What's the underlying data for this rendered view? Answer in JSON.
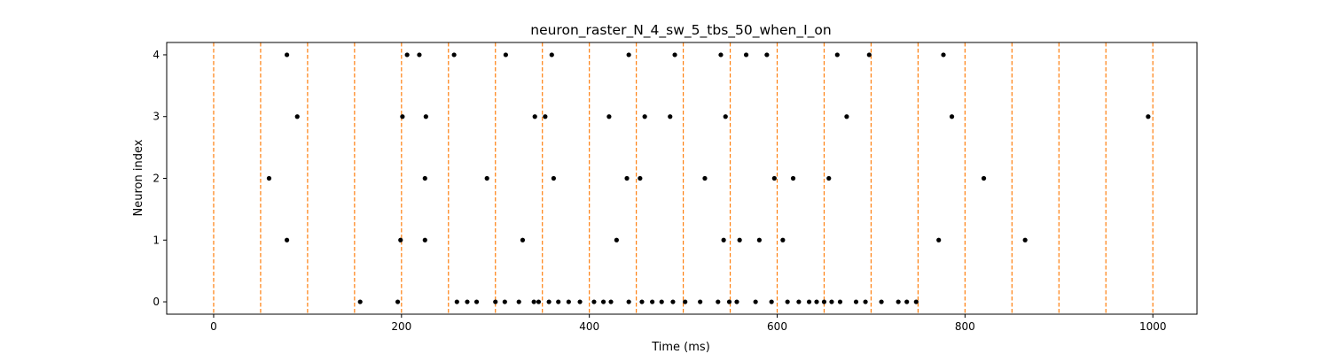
{
  "chart_data": {
    "type": "scatter",
    "title": "neuron_raster_N_4_sw_5_tbs_50_when_I_on",
    "xlabel": "Time (ms)",
    "ylabel": "Neuron index",
    "xlim": [
      -50,
      1047
    ],
    "ylim": [
      -0.2,
      4.2
    ],
    "x_ticks": [
      0,
      200,
      400,
      600,
      800,
      1000
    ],
    "y_ticks": [
      0,
      1,
      2,
      3,
      4
    ],
    "grid": false,
    "vlines": {
      "style": "dashed",
      "color": "#ff7f0e",
      "x": [
        0,
        50,
        100,
        150,
        200,
        250,
        300,
        350,
        400,
        450,
        500,
        550,
        600,
        650,
        700,
        750,
        800,
        850,
        900,
        950,
        1000
      ]
    },
    "marker_color": "#000000",
    "series": [
      {
        "neuron": 4,
        "times": [
          78,
          206,
          219,
          256,
          311,
          360,
          442,
          491,
          540,
          567,
          589,
          664,
          698,
          777
        ]
      },
      {
        "neuron": 3,
        "times": [
          89,
          201,
          226,
          342,
          353,
          421,
          459,
          486,
          545,
          674,
          786,
          995
        ]
      },
      {
        "neuron": 2,
        "times": [
          59,
          225,
          291,
          362,
          440,
          454,
          523,
          597,
          617,
          655,
          820
        ]
      },
      {
        "neuron": 1,
        "times": [
          78,
          199,
          225,
          329,
          429,
          543,
          560,
          581,
          606,
          772,
          864
        ]
      },
      {
        "neuron": 0,
        "times": [
          156,
          196,
          259,
          270,
          280,
          300,
          310,
          325,
          341,
          346,
          357,
          367,
          378,
          390,
          405,
          415,
          423,
          442,
          456,
          467,
          477,
          489,
          502,
          518,
          537,
          549,
          557,
          577,
          594,
          611,
          623,
          634,
          642,
          650,
          658,
          667,
          684,
          694,
          711,
          729,
          738,
          748
        ]
      }
    ]
  }
}
